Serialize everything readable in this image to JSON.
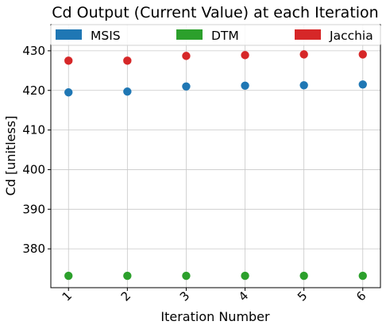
{
  "chart_data": {
    "type": "scatter",
    "title": "Cd Output (Current Value) at each Iteration",
    "xlabel": "Iteration Number",
    "ylabel": "Cd [unitless]",
    "x": [
      1,
      2,
      3,
      4,
      5,
      6
    ],
    "x_tick_labels": [
      "1",
      "2",
      "3",
      "4",
      "5",
      "6"
    ],
    "y_ticks": [
      380,
      390,
      400,
      410,
      420,
      430
    ],
    "y_tick_labels": [
      "380",
      "390",
      "400",
      "410",
      "420",
      "430"
    ],
    "xlim": [
      0.7,
      6.3
    ],
    "ylim": [
      370.2,
      436.6
    ],
    "grid": true,
    "legend_position": "top",
    "series": [
      {
        "name": "MSIS",
        "color": "#1f77b4",
        "values": [
          419.5,
          419.7,
          421.0,
          421.2,
          421.3,
          421.5
        ]
      },
      {
        "name": "DTM",
        "color": "#2ca02c",
        "values": [
          373.2,
          373.2,
          373.2,
          373.2,
          373.2,
          373.2
        ]
      },
      {
        "name": "Jacchia",
        "color": "#d62728",
        "values": [
          427.5,
          427.5,
          428.7,
          428.9,
          429.1,
          429.1
        ]
      }
    ]
  }
}
